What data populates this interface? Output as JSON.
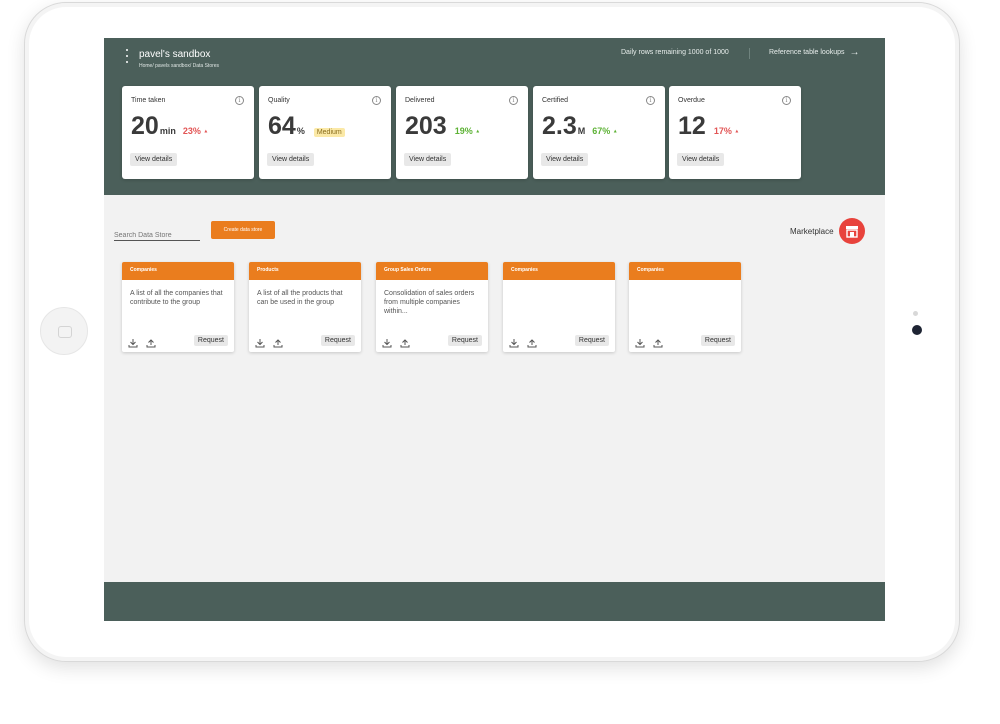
{
  "header": {
    "title": "pavel's sandbox",
    "breadcrumb": "Home/ pavels sandbox/ Data Stores",
    "daily_rows": "Daily rows remaining 1000 of 1000",
    "ref_link": "Reference table lookups",
    "ref_arrow": "→"
  },
  "stats": [
    {
      "label": "Time taken",
      "value": "20",
      "unit": "min",
      "change": "23%",
      "direction": "up",
      "color": "#e25555",
      "button": "View details"
    },
    {
      "label": "Quality",
      "value": "64",
      "unit": "%",
      "badge": "Medium",
      "button": "View details"
    },
    {
      "label": "Delivered",
      "value": "203",
      "unit": "",
      "change": "19%",
      "direction": "up",
      "color": "#5db235",
      "button": "View details"
    },
    {
      "label": "Certified",
      "value": "2.3",
      "unit": "M",
      "change": "67%",
      "direction": "up",
      "color": "#5db235",
      "button": "View details"
    },
    {
      "label": "Overdue",
      "value": "12",
      "unit": "",
      "change": "17%",
      "direction": "up",
      "color": "#e25555",
      "button": "View details"
    }
  ],
  "info_glyph": "i",
  "change_arrow": "▲",
  "toolbar": {
    "search_placeholder": "Search Data Store",
    "create_label": "Create data store",
    "marketplace_label": "Marketplace"
  },
  "datastores": [
    {
      "title": "Companies",
      "description": "A list of all the companies that contribute to the group",
      "request": "Request"
    },
    {
      "title": "Products",
      "description": "A list of all the products that can be used in the group",
      "request": "Request"
    },
    {
      "title": "Group Sales Orders",
      "description": "Consolidation of sales orders from multiple companies within...",
      "request": "Request"
    },
    {
      "title": "Companies",
      "description": "",
      "request": "Request"
    },
    {
      "title": "Companies",
      "description": "",
      "request": "Request"
    }
  ],
  "colors": {
    "header": "#4b5f5a",
    "accent": "#ea7d1e",
    "marketplace": "#e8433c"
  }
}
